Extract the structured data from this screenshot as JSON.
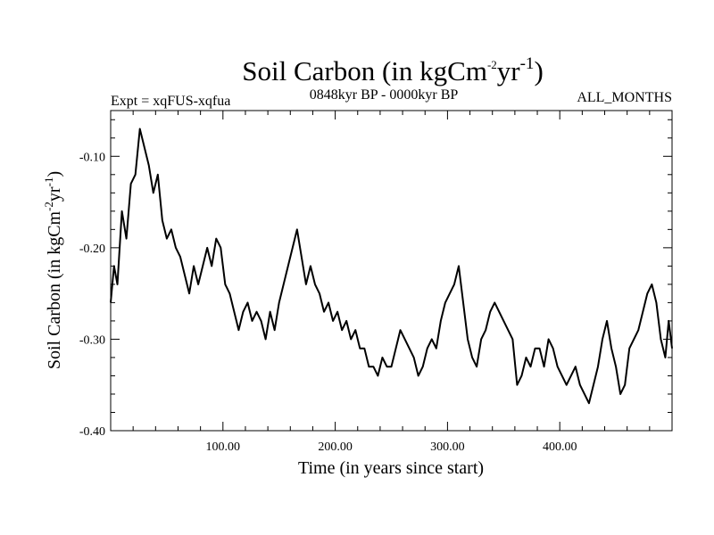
{
  "chart_data": {
    "type": "line",
    "title": "Soil Carbon (in kgCm-2yr-1)",
    "title_parts": {
      "base": "Soil Carbon (in kgCm",
      "sup1": "-2",
      "mid": "yr",
      "sup2": "-1",
      "end": ")"
    },
    "subtitle_left": "Expt = xqFUS-xqfua",
    "subtitle_center": "0848kyr BP - 0000kyr BP",
    "subtitle_right": "ALL_MONTHS",
    "xlabel": "Time (in years since start)",
    "ylabel_parts": {
      "base": "Soil Carbon (in kgCm",
      "sup1": "-2",
      "mid": "yr",
      "sup2": "-1",
      "end": ")"
    },
    "xlim": [
      0,
      500
    ],
    "ylim": [
      -0.4,
      -0.05
    ],
    "xticks": [
      100,
      200,
      300,
      400
    ],
    "xtick_labels": [
      "100.00",
      "200.00",
      "300.00",
      "400.00"
    ],
    "yticks": [
      -0.1,
      -0.2,
      -0.3,
      -0.4
    ],
    "ytick_labels": [
      "-0.10",
      "-0.20",
      "-0.30",
      "-0.40"
    ],
    "series": [
      {
        "name": "Soil Carbon",
        "color": "#000000",
        "points": [
          [
            0,
            -0.26
          ],
          [
            3,
            -0.22
          ],
          [
            6,
            -0.24
          ],
          [
            10,
            -0.16
          ],
          [
            14,
            -0.19
          ],
          [
            18,
            -0.13
          ],
          [
            22,
            -0.12
          ],
          [
            26,
            -0.07
          ],
          [
            30,
            -0.09
          ],
          [
            34,
            -0.11
          ],
          [
            38,
            -0.14
          ],
          [
            42,
            -0.12
          ],
          [
            46,
            -0.17
          ],
          [
            50,
            -0.19
          ],
          [
            54,
            -0.18
          ],
          [
            58,
            -0.2
          ],
          [
            62,
            -0.21
          ],
          [
            66,
            -0.23
          ],
          [
            70,
            -0.25
          ],
          [
            74,
            -0.22
          ],
          [
            78,
            -0.24
          ],
          [
            82,
            -0.22
          ],
          [
            86,
            -0.2
          ],
          [
            90,
            -0.22
          ],
          [
            94,
            -0.19
          ],
          [
            98,
            -0.2
          ],
          [
            102,
            -0.24
          ],
          [
            106,
            -0.25
          ],
          [
            110,
            -0.27
          ],
          [
            114,
            -0.29
          ],
          [
            118,
            -0.27
          ],
          [
            122,
            -0.26
          ],
          [
            126,
            -0.28
          ],
          [
            130,
            -0.27
          ],
          [
            134,
            -0.28
          ],
          [
            138,
            -0.3
          ],
          [
            142,
            -0.27
          ],
          [
            146,
            -0.29
          ],
          [
            150,
            -0.26
          ],
          [
            154,
            -0.24
          ],
          [
            158,
            -0.22
          ],
          [
            162,
            -0.2
          ],
          [
            166,
            -0.18
          ],
          [
            170,
            -0.21
          ],
          [
            174,
            -0.24
          ],
          [
            178,
            -0.22
          ],
          [
            182,
            -0.24
          ],
          [
            186,
            -0.25
          ],
          [
            190,
            -0.27
          ],
          [
            194,
            -0.26
          ],
          [
            198,
            -0.28
          ],
          [
            202,
            -0.27
          ],
          [
            206,
            -0.29
          ],
          [
            210,
            -0.28
          ],
          [
            214,
            -0.3
          ],
          [
            218,
            -0.29
          ],
          [
            222,
            -0.31
          ],
          [
            226,
            -0.31
          ],
          [
            230,
            -0.33
          ],
          [
            234,
            -0.33
          ],
          [
            238,
            -0.34
          ],
          [
            242,
            -0.32
          ],
          [
            246,
            -0.33
          ],
          [
            250,
            -0.33
          ],
          [
            254,
            -0.31
          ],
          [
            258,
            -0.29
          ],
          [
            262,
            -0.3
          ],
          [
            266,
            -0.31
          ],
          [
            270,
            -0.32
          ],
          [
            274,
            -0.34
          ],
          [
            278,
            -0.33
          ],
          [
            282,
            -0.31
          ],
          [
            286,
            -0.3
          ],
          [
            290,
            -0.31
          ],
          [
            294,
            -0.28
          ],
          [
            298,
            -0.26
          ],
          [
            302,
            -0.25
          ],
          [
            306,
            -0.24
          ],
          [
            310,
            -0.22
          ],
          [
            314,
            -0.26
          ],
          [
            318,
            -0.3
          ],
          [
            322,
            -0.32
          ],
          [
            326,
            -0.33
          ],
          [
            330,
            -0.3
          ],
          [
            334,
            -0.29
          ],
          [
            338,
            -0.27
          ],
          [
            342,
            -0.26
          ],
          [
            346,
            -0.27
          ],
          [
            350,
            -0.28
          ],
          [
            354,
            -0.29
          ],
          [
            358,
            -0.3
          ],
          [
            362,
            -0.35
          ],
          [
            366,
            -0.34
          ],
          [
            370,
            -0.32
          ],
          [
            374,
            -0.33
          ],
          [
            378,
            -0.31
          ],
          [
            382,
            -0.31
          ],
          [
            386,
            -0.33
          ],
          [
            390,
            -0.3
          ],
          [
            394,
            -0.31
          ],
          [
            398,
            -0.33
          ],
          [
            402,
            -0.34
          ],
          [
            406,
            -0.35
          ],
          [
            410,
            -0.34
          ],
          [
            414,
            -0.33
          ],
          [
            418,
            -0.35
          ],
          [
            422,
            -0.36
          ],
          [
            426,
            -0.37
          ],
          [
            430,
            -0.35
          ],
          [
            434,
            -0.33
          ],
          [
            438,
            -0.3
          ],
          [
            442,
            -0.28
          ],
          [
            446,
            -0.31
          ],
          [
            450,
            -0.33
          ],
          [
            454,
            -0.36
          ],
          [
            458,
            -0.35
          ],
          [
            462,
            -0.31
          ],
          [
            466,
            -0.3
          ],
          [
            470,
            -0.29
          ],
          [
            474,
            -0.27
          ],
          [
            478,
            -0.25
          ],
          [
            482,
            -0.24
          ],
          [
            486,
            -0.26
          ],
          [
            490,
            -0.3
          ],
          [
            494,
            -0.32
          ],
          [
            497,
            -0.28
          ],
          [
            500,
            -0.31
          ]
        ]
      }
    ]
  }
}
